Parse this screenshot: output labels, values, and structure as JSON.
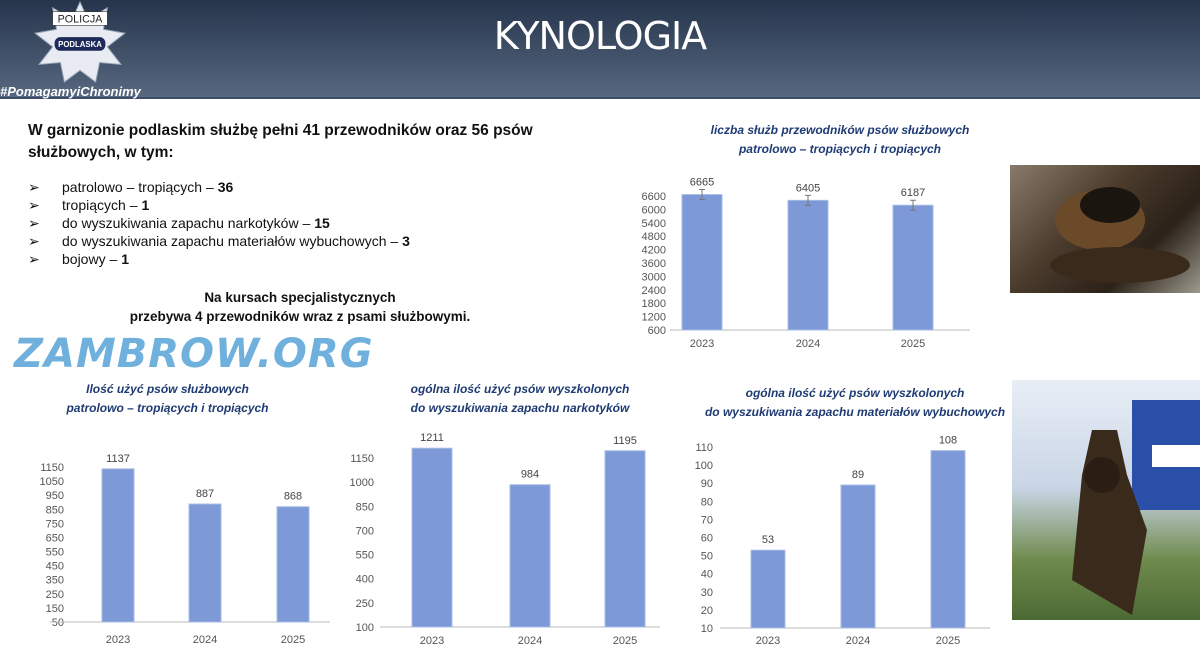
{
  "header": {
    "title": "KYNOLOGIA",
    "logo_top": "POLICJA",
    "logo_bottom": "PODLASKA",
    "hashtag": "#PomagamyiChronimy"
  },
  "intro": {
    "text": "W garnizonie podlaskim służbę pełni 41 przewodników oraz 56 psów służbowych, w tym:"
  },
  "list": [
    {
      "label": "patrolowo – tropiących –",
      "value": "36"
    },
    {
      "label": "tropiących –",
      "value": "1"
    },
    {
      "label": "do wyszukiwania zapachu narkotyków –",
      "value": "15"
    },
    {
      "label": "do wyszukiwania zapachu materiałów wybuchowych –",
      "value": "3"
    },
    {
      "label": "bojowy –",
      "value": "1"
    }
  ],
  "course": {
    "line1": "Na kursach specjalistycznych",
    "line2": "przebywa 4 przewodników wraz z psami służbowymi."
  },
  "watermark": "ZAMBROW.ORG",
  "chart_data": [
    {
      "type": "bar",
      "title": [
        "liczba służb przewodników psów służbowych",
        "patrolowo – tropiących i tropiących"
      ],
      "categories": [
        "2023",
        "2024",
        "2025"
      ],
      "values": [
        6665,
        6405,
        6187
      ],
      "ylim": [
        600,
        6600
      ],
      "yticks": [
        600,
        1200,
        1800,
        2400,
        3000,
        3600,
        4200,
        4800,
        5400,
        6000,
        6600
      ],
      "error_bars": true,
      "color": "#7d99d8"
    },
    {
      "type": "bar",
      "title": [
        "Ilość użyć psów służbowych",
        "patrolowo – tropiących i tropiących"
      ],
      "categories": [
        "2023",
        "2024",
        "2025"
      ],
      "values": [
        1137,
        887,
        868
      ],
      "ylim": [
        50,
        1150
      ],
      "yticks": [
        50,
        150,
        250,
        350,
        450,
        550,
        650,
        750,
        850,
        950,
        1050,
        1150
      ],
      "color": "#7d99d8"
    },
    {
      "type": "bar",
      "title": [
        "ogólna ilość użyć psów wyszkolonych",
        "do wyszukiwania zapachu narkotyków"
      ],
      "categories": [
        "2023",
        "2024",
        "2025"
      ],
      "values": [
        1211,
        984,
        1195
      ],
      "ylim": [
        100,
        1150
      ],
      "yticks": [
        100,
        250,
        400,
        550,
        700,
        850,
        1000,
        1150
      ],
      "color": "#7d99d8"
    },
    {
      "type": "bar",
      "title": [
        "ogólna ilość użyć psów wyszkolonych",
        "do wyszukiwania zapachu materiałów wybuchowych"
      ],
      "categories": [
        "2023",
        "2024",
        "2025"
      ],
      "values": [
        53,
        89,
        108
      ],
      "ylim": [
        10,
        110
      ],
      "yticks": [
        10,
        20,
        30,
        40,
        50,
        60,
        70,
        80,
        90,
        100,
        110
      ],
      "color": "#7d99d8"
    }
  ]
}
